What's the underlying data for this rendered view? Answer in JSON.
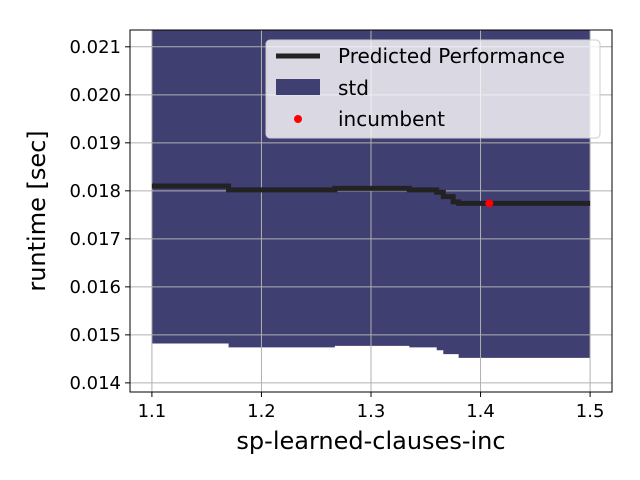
{
  "chart_data": {
    "type": "line",
    "title": "",
    "xlabel": "sp-learned-clauses-inc",
    "ylabel": "runtime [sec]",
    "xlim": [
      1.08,
      1.52
    ],
    "ylim": [
      0.01381,
      0.02135
    ],
    "x_ticks": [
      1.1,
      1.2,
      1.3,
      1.4,
      1.5
    ],
    "x_tick_labels": [
      "1.1",
      "1.2",
      "1.3",
      "1.4",
      "1.5"
    ],
    "y_ticks": [
      0.014,
      0.015,
      0.016,
      0.017,
      0.018,
      0.019,
      0.02,
      0.021
    ],
    "y_tick_labels": [
      "0.014",
      "0.015",
      "0.016",
      "0.017",
      "0.018",
      "0.019",
      "0.020",
      "0.021"
    ],
    "grid": true,
    "legend_position": "top-right",
    "legend": {
      "mean_label": "Predicted Performance",
      "std_label": "std",
      "incumbent_label": "incumbent"
    },
    "colors": {
      "mean": "#222222",
      "std": "#403f72",
      "incumbent": "#ff0000",
      "plot_bg": "#ffffff",
      "grid": "#b0b0b0"
    },
    "series": [
      {
        "name": "Predicted Performance",
        "x": [
          1.1,
          1.17,
          1.17,
          1.267,
          1.267,
          1.335,
          1.335,
          1.36,
          1.36,
          1.366,
          1.366,
          1.375,
          1.375,
          1.38,
          1.38,
          1.5
        ],
        "y": [
          0.0181,
          0.0181,
          0.01802,
          0.01802,
          0.01805,
          0.01805,
          0.01802,
          0.01802,
          0.01797,
          0.01797,
          0.01788,
          0.01788,
          0.01777,
          0.01777,
          0.01774,
          0.01774
        ]
      },
      {
        "name": "std",
        "x": [
          1.1,
          1.17,
          1.17,
          1.267,
          1.267,
          1.335,
          1.335,
          1.36,
          1.36,
          1.366,
          1.366,
          1.38,
          1.38,
          1.5
        ],
        "upper": [
          0.0216,
          0.0216,
          0.0216,
          0.0216,
          0.0216,
          0.0216,
          0.0216,
          0.0216,
          0.0216,
          0.0216,
          0.0216,
          0.0216,
          0.0216,
          0.0216
        ],
        "lower": [
          0.01482,
          0.01482,
          0.01474,
          0.01474,
          0.01477,
          0.01477,
          0.01474,
          0.01474,
          0.01468,
          0.01468,
          0.0146,
          0.0146,
          0.01452,
          0.01452
        ]
      },
      {
        "name": "incumbent",
        "x": [
          1.408
        ],
        "y": [
          0.01774
        ]
      }
    ]
  }
}
